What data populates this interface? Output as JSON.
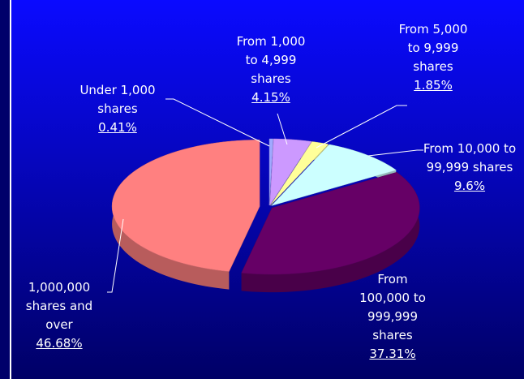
{
  "chart_data": {
    "type": "pie",
    "categories": [
      "Under 1,000 shares",
      "From 1,000 to 4,999 shares",
      "From 5,000 to 9,999 shares",
      "From 10,000 to 99,999 shares",
      "From 100,000 to 999,999 shares",
      "1,000,000 shares and over"
    ],
    "values": [
      0.41,
      4.15,
      1.85,
      9.6,
      37.31,
      46.68
    ],
    "value_labels": [
      "0.41%",
      "4.15%",
      "1.85%",
      "9.6%",
      "37.31%",
      "46.68%"
    ],
    "colors": [
      "#a0a8ff",
      "#cc99ff",
      "#ffff99",
      "#ccffff",
      "#660066",
      "#ff8080"
    ]
  }
}
